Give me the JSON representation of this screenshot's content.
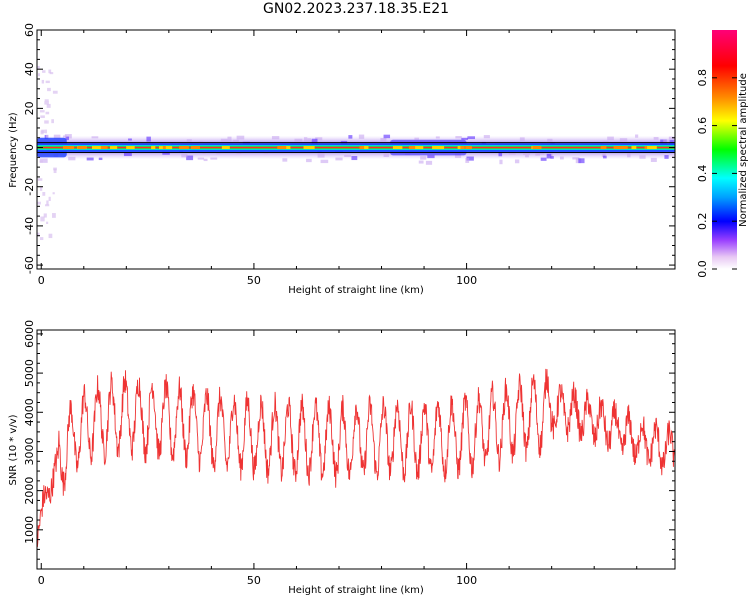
{
  "title": "GN02.2023.237.18.35.E21",
  "chart_data": [
    {
      "type": "heatmap",
      "name": "spectrogram",
      "xlabel": "Height of straight line (km)",
      "ylabel": "Frequency (Hz)",
      "xlim": [
        -1,
        149
      ],
      "ylim": [
        -62,
        60
      ],
      "xticks": [
        0,
        50,
        100
      ],
      "yticks": [
        -60,
        -40,
        -20,
        0,
        20,
        40,
        60
      ],
      "colorbar": {
        "label": "Normalized spectral amplitude",
        "range": [
          0,
          1
        ],
        "ticks": [
          "0.0",
          "0.2",
          "0.4",
          "0.6",
          "0.8"
        ],
        "colormap": "hsv-like: white, magenta, purple, blue, cyan, green, yellow, orange, red, pink"
      },
      "horizontal_lines_hz": [
        2.5,
        -2.5
      ]
    },
    {
      "type": "line",
      "name": "snr",
      "xlabel": "Height of straight line (km)",
      "ylabel": "SNR (10 * v/v)",
      "xlim": [
        -1,
        149
      ],
      "ylim": [
        0,
        6100
      ],
      "xticks": [
        0,
        50,
        100
      ],
      "yticks": [
        1000,
        2000,
        3000,
        4000,
        5000,
        6000
      ],
      "color": "#ee3333",
      "series": [
        {
          "x": [
            -1,
            1,
            3,
            5,
            8,
            11,
            14,
            17,
            20,
            23,
            26,
            29,
            32,
            35,
            38,
            41,
            44,
            47,
            50,
            53,
            56,
            59,
            62,
            65,
            68,
            71,
            74,
            77,
            80,
            83,
            86,
            89,
            92,
            95,
            98,
            101,
            104,
            107,
            110,
            113,
            116,
            119,
            122,
            125,
            128,
            131,
            134,
            137,
            140,
            143,
            146,
            149
          ],
          "values": [
            900,
            1800,
            2400,
            3000,
            3400,
            3700,
            3800,
            3900,
            3950,
            3900,
            3850,
            3800,
            3750,
            3700,
            3600,
            3500,
            3500,
            3450,
            3400,
            3350,
            3350,
            3300,
            3300,
            3300,
            3250,
            3250,
            3300,
            3300,
            3300,
            3350,
            3300,
            3300,
            3350,
            3350,
            3400,
            3450,
            3550,
            3650,
            3750,
            3850,
            3950,
            4050,
            4050,
            4000,
            3850,
            3750,
            3600,
            3450,
            3300,
            3200,
            3100,
            3000
          ]
        }
      ]
    }
  ]
}
